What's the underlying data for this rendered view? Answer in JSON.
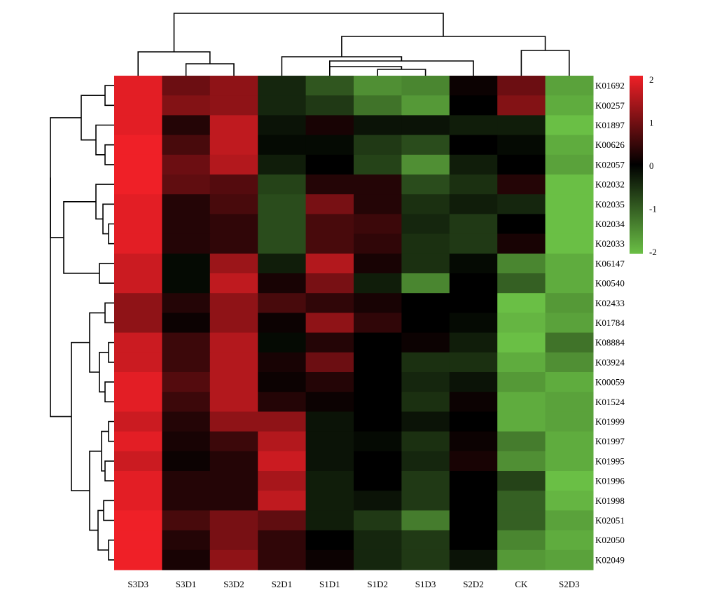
{
  "chart_data": {
    "type": "heatmap",
    "columns": [
      "S3D3",
      "S3D1",
      "S3D2",
      "S2D1",
      "S1D1",
      "S1D2",
      "S1D3",
      "S2D2",
      "CK",
      "S2D3"
    ],
    "rows": [
      "K01692",
      "K00257",
      "K01897",
      "K00626",
      "K02057",
      "K02032",
      "K02035",
      "K02034",
      "K02033",
      "K06147",
      "K00540",
      "K02433",
      "K01784",
      "K08884",
      "K03924",
      "K00059",
      "K01524",
      "K01999",
      "K01997",
      "K01995",
      "K01996",
      "K01998",
      "K02051",
      "K02050",
      "K02049"
    ],
    "values": [
      [
        1.9,
        0.9,
        1.2,
        -0.4,
        -0.9,
        -1.5,
        -1.4,
        0.1,
        0.9,
        -1.7
      ],
      [
        1.9,
        1.1,
        1.2,
        -0.4,
        -0.6,
        -1.2,
        -1.6,
        0.0,
        1.1,
        -1.8
      ],
      [
        1.9,
        0.3,
        1.6,
        -0.2,
        0.2,
        -0.2,
        -0.2,
        -0.3,
        -0.3,
        -2.0
      ],
      [
        2.0,
        0.6,
        1.6,
        -0.1,
        -0.1,
        -0.6,
        -0.8,
        0.0,
        -0.1,
        -1.8
      ],
      [
        2.2,
        0.9,
        1.5,
        -0.3,
        0.0,
        -0.7,
        -1.5,
        -0.3,
        0.0,
        -1.7
      ],
      [
        2.0,
        0.8,
        0.7,
        -0.7,
        0.3,
        0.3,
        -0.8,
        -0.5,
        0.3,
        -2.0
      ],
      [
        1.9,
        0.3,
        0.6,
        -0.8,
        1.0,
        0.3,
        -0.5,
        -0.3,
        -0.4,
        -2.0
      ],
      [
        1.9,
        0.3,
        0.4,
        -0.8,
        0.6,
        0.5,
        -0.4,
        -0.6,
        0.0,
        -2.0
      ],
      [
        1.9,
        0.3,
        0.4,
        -0.8,
        0.6,
        0.4,
        -0.5,
        -0.6,
        0.2,
        -2.0
      ],
      [
        1.7,
        -0.1,
        1.3,
        -0.3,
        1.5,
        0.2,
        -0.5,
        -0.1,
        -1.4,
        -1.8
      ],
      [
        1.7,
        -0.1,
        1.6,
        0.2,
        1.0,
        -0.3,
        -1.4,
        0.0,
        -1.0,
        -1.8
      ],
      [
        1.2,
        0.3,
        1.2,
        0.6,
        0.4,
        0.2,
        0.0,
        0.0,
        -2.0,
        -1.6
      ],
      [
        1.2,
        0.1,
        1.2,
        0.1,
        1.2,
        0.4,
        0.0,
        -0.1,
        -1.9,
        -1.7
      ],
      [
        1.7,
        0.5,
        1.5,
        -0.1,
        0.3,
        0.0,
        0.1,
        -0.3,
        -2.0,
        -1.2
      ],
      [
        1.7,
        0.5,
        1.5,
        0.2,
        0.9,
        0.0,
        -0.5,
        -0.5,
        -1.8,
        -1.5
      ],
      [
        1.9,
        0.7,
        1.5,
        0.1,
        0.3,
        0.0,
        -0.4,
        -0.2,
        -1.6,
        -1.8
      ],
      [
        1.9,
        0.5,
        1.5,
        0.3,
        0.1,
        0.0,
        -0.5,
        0.1,
        -1.8,
        -1.7
      ],
      [
        1.7,
        0.3,
        1.2,
        1.2,
        -0.2,
        0.0,
        -0.2,
        0.0,
        -1.8,
        -1.7
      ],
      [
        1.9,
        0.2,
        0.5,
        1.5,
        -0.2,
        -0.1,
        -0.5,
        0.1,
        -1.3,
        -1.8
      ],
      [
        1.7,
        0.1,
        0.3,
        1.7,
        -0.2,
        0.0,
        -0.4,
        0.2,
        -1.5,
        -1.8
      ],
      [
        1.9,
        0.3,
        0.3,
        1.4,
        -0.3,
        0.0,
        -0.6,
        0.0,
        -0.7,
        -2.0
      ],
      [
        1.9,
        0.3,
        0.3,
        1.6,
        -0.3,
        -0.2,
        -0.6,
        0.0,
        -1.0,
        -1.9
      ],
      [
        2.2,
        0.6,
        1.0,
        0.8,
        -0.3,
        -0.6,
        -1.3,
        0.0,
        -1.0,
        -1.7
      ],
      [
        2.2,
        0.3,
        1.0,
        0.4,
        0.0,
        -0.4,
        -0.6,
        0.0,
        -1.4,
        -1.8
      ],
      [
        2.2,
        0.2,
        1.2,
        0.4,
        0.1,
        -0.4,
        -0.6,
        -0.2,
        -1.6,
        -1.7
      ]
    ],
    "color_scale": {
      "min": -2,
      "max": 2,
      "low": "#6abf45",
      "mid": "#000000",
      "high": "#ef2027"
    },
    "legend_ticks": [
      "2",
      "1",
      "0",
      "-1",
      "-2"
    ],
    "col_dendrogram": "present (top)",
    "row_dendrogram": "present (left)"
  }
}
